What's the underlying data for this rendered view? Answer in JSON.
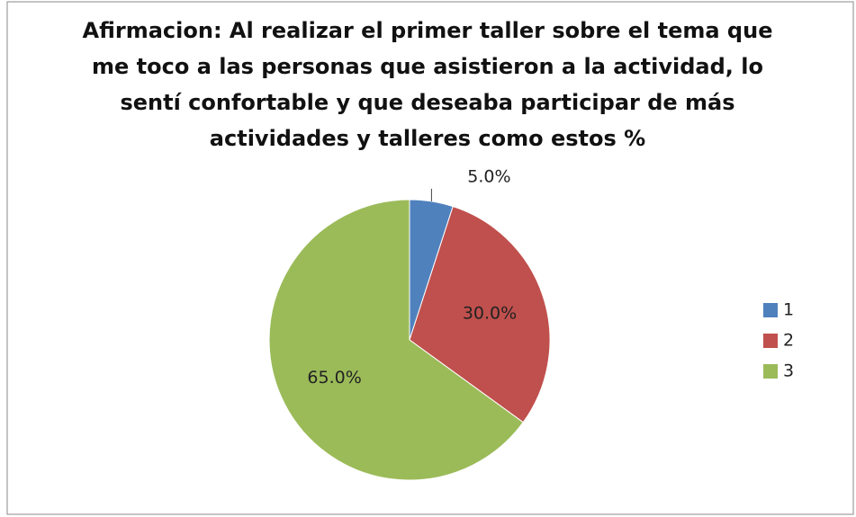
{
  "chart_data": {
    "type": "pie",
    "title": "Afirmacion: Al realizar el primer taller sobre el tema que me toco a las personas que asistieron a la actividad, lo sentí confortable y que deseaba participar de más actividades y talleres como estos %",
    "categories": [
      "1",
      "2",
      "3"
    ],
    "values": [
      5,
      30,
      65
    ],
    "value_labels": [
      "5.0%",
      "30.0%",
      "65.0%"
    ],
    "colors": [
      "#4f81bd",
      "#c0504d",
      "#9bbb59"
    ],
    "legend": "right"
  }
}
